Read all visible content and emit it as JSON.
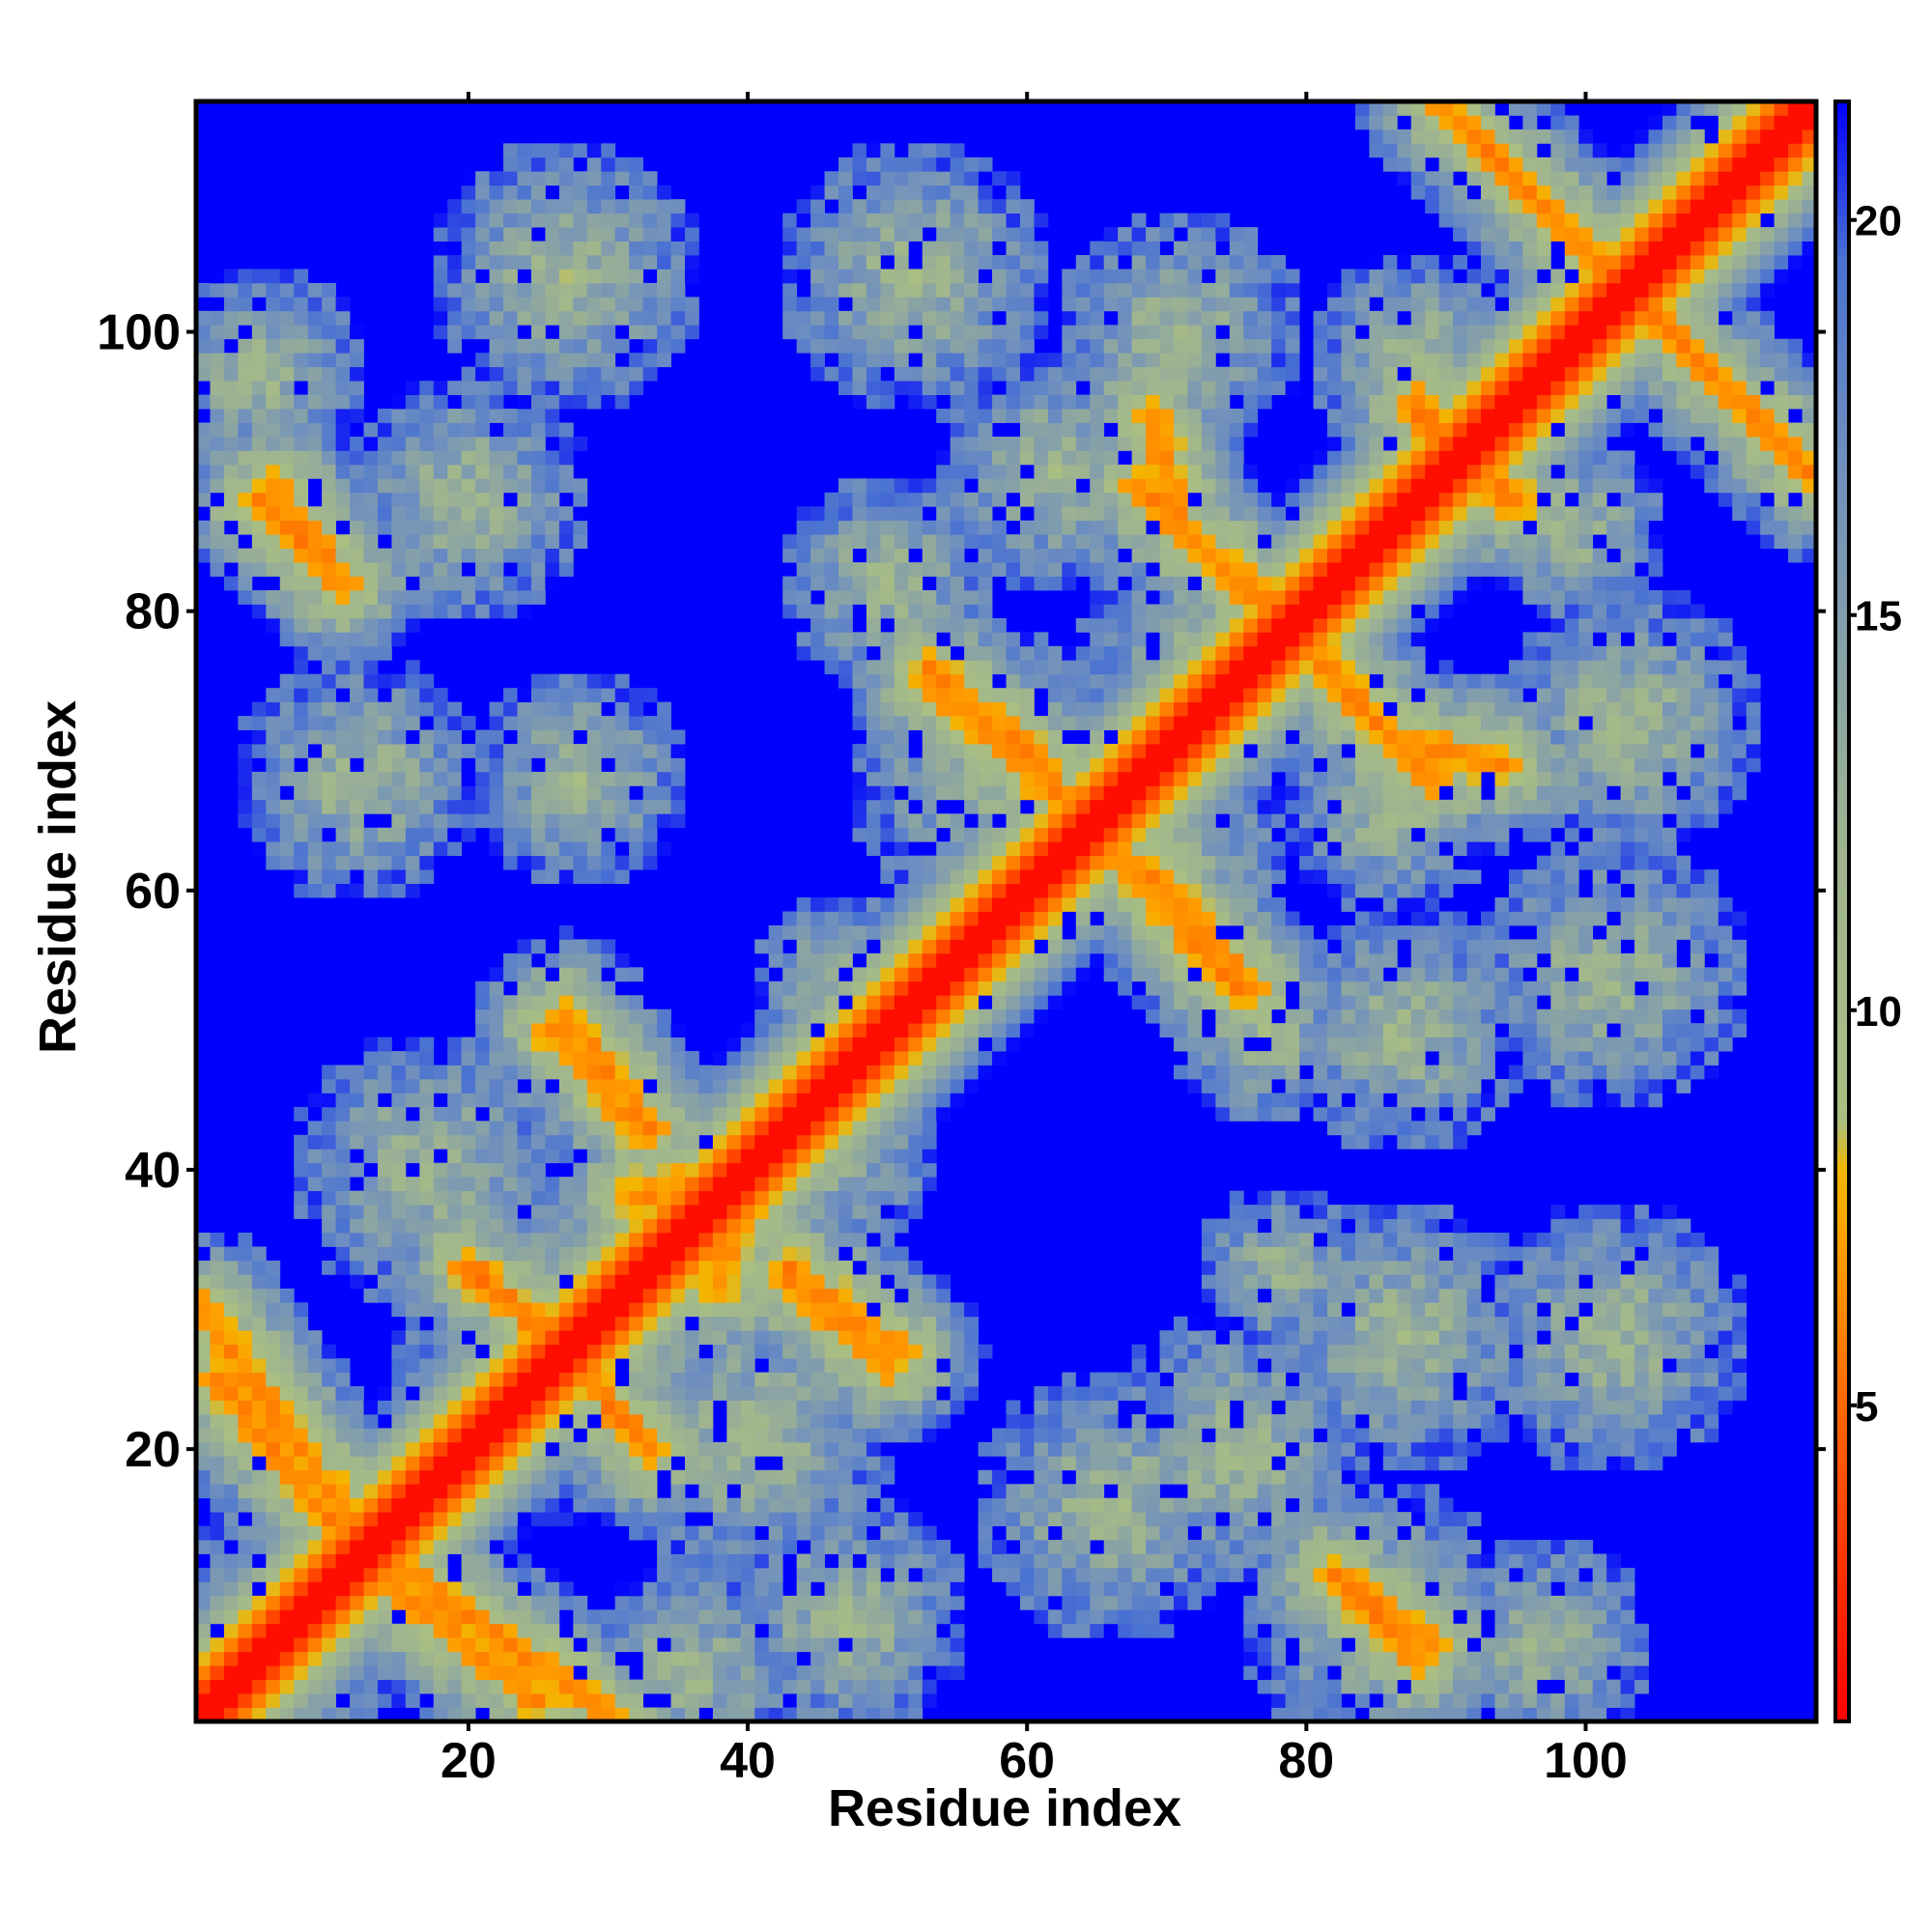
{
  "chart_data": {
    "type": "heatmap",
    "title": "",
    "xlabel": "Residue index",
    "ylabel": "Residue index",
    "n_residues": 116,
    "xlim": [
      1,
      116
    ],
    "ylim": [
      1,
      116
    ],
    "x_ticks": [
      20,
      40,
      60,
      80,
      100
    ],
    "y_ticks": [
      20,
      40,
      60,
      80,
      100
    ],
    "colorbar": {
      "range": [
        1,
        21.5
      ],
      "ticks": [
        5,
        10,
        15,
        20
      ],
      "stops": [
        {
          "value": 1.0,
          "color": "#ff0000"
        },
        {
          "value": 4.5,
          "color": "#ff5a00"
        },
        {
          "value": 7.0,
          "color": "#ff9d00"
        },
        {
          "value": 8.0,
          "color": "#f2b700"
        },
        {
          "value": 8.6,
          "color": "#a9bf82"
        },
        {
          "value": 12.0,
          "color": "#9fb48f"
        },
        {
          "value": 17.0,
          "color": "#6f8fbf"
        },
        {
          "value": 19.5,
          "color": "#4a72d2"
        },
        {
          "value": 21.5,
          "color": "#0000ff"
        }
      ]
    },
    "background_value": 21.5,
    "diagonal": {
      "core_halfwidth": 1,
      "falloff_per_residue": 2.2
    },
    "contact_segments": [
      {
        "from": [
          2,
          25
        ],
        "to": [
          10,
          15
        ],
        "distance": 6.0,
        "width": 1.0
      },
      {
        "from": [
          10,
          15
        ],
        "to": [
          30,
          1
        ],
        "distance": 6.0,
        "width": 1.0
      },
      {
        "from": [
          20,
          33
        ],
        "to": [
          27,
          27
        ],
        "distance": 5.5,
        "width": 1.0
      },
      {
        "from": [
          27,
          27
        ],
        "to": [
          33,
          20
        ],
        "distance": 5.5,
        "width": 1.0
      },
      {
        "from": [
          27,
          51
        ],
        "to": [
          33,
          43
        ],
        "distance": 6.0,
        "width": 1.0
      },
      {
        "from": [
          43,
          32
        ],
        "to": [
          50,
          26
        ],
        "distance": 6.0,
        "width": 1.0
      },
      {
        "from": [
          32,
          38
        ],
        "to": [
          40,
          40
        ],
        "distance": 6.0,
        "width": 1.5
      },
      {
        "from": [
          6,
          89
        ],
        "to": [
          11,
          82
        ],
        "distance": 6.0,
        "width": 1.0
      },
      {
        "from": [
          53,
          76
        ],
        "to": [
          60,
          70
        ],
        "distance": 6.0,
        "width": 1.0
      },
      {
        "from": [
          60,
          70
        ],
        "to": [
          65,
          64
        ],
        "distance": 6.0,
        "width": 1.0
      },
      {
        "from": [
          65,
          64
        ],
        "to": [
          75,
          53
        ],
        "distance": 6.0,
        "width": 1.0
      },
      {
        "from": [
          68,
          89
        ],
        "to": [
          73,
          84
        ],
        "distance": 6.0,
        "width": 1.0
      },
      {
        "from": [
          73,
          84
        ],
        "to": [
          80,
          78
        ],
        "distance": 6.0,
        "width": 1.0
      },
      {
        "from": [
          80,
          78
        ],
        "to": [
          86,
          71
        ],
        "distance": 6.0,
        "width": 1.0
      },
      {
        "from": [
          86,
          71
        ],
        "to": [
          94,
          69
        ],
        "distance": 6.0,
        "width": 1.0
      },
      {
        "from": [
          82,
          11
        ],
        "to": [
          88,
          5
        ],
        "distance": 6.0,
        "width": 1.0
      },
      {
        "from": [
          88,
          94
        ],
        "to": [
          95,
          88
        ],
        "distance": 6.0,
        "width": 1.0
      },
      {
        "from": [
          89,
          117
        ],
        "to": [
          117,
          89
        ],
        "distance": 6.0,
        "width": 0.8
      }
    ],
    "contact_blobs": [
      {
        "center": [
          7,
          7
        ],
        "radius": 10
      },
      {
        "center": [
          24,
          24
        ],
        "radius": 10
      },
      {
        "center": [
          36,
          4
        ],
        "radius": 8
      },
      {
        "center": [
          47,
          8
        ],
        "radius": 9
      },
      {
        "center": [
          40,
          21
        ],
        "radius": 11
      },
      {
        "center": [
          30,
          30
        ],
        "radius": 12
      },
      {
        "center": [
          17,
          40
        ],
        "radius": 10
      },
      {
        "center": [
          12,
          68
        ],
        "radius": 9
      },
      {
        "center": [
          28,
          68
        ],
        "radius": 8
      },
      {
        "center": [
          5,
          97
        ],
        "radius": 8
      },
      {
        "center": [
          20,
          88
        ],
        "radius": 9
      },
      {
        "center": [
          27,
          104
        ],
        "radius": 10
      },
      {
        "center": [
          45,
          42
        ],
        "radius": 9
      },
      {
        "center": [
          47,
          53
        ],
        "radius": 7
      },
      {
        "center": [
          50,
          82
        ],
        "radius": 8
      },
      {
        "center": [
          52,
          104
        ],
        "radius": 10
      },
      {
        "center": [
          62,
          90
        ],
        "radius": 9
      },
      {
        "center": [
          58,
          68
        ],
        "radius": 11
      },
      {
        "center": [
          66,
          16
        ],
        "radius": 10
      },
      {
        "center": [
          75,
          20
        ],
        "radius": 10
      },
      {
        "center": [
          70,
          62
        ],
        "radius": 9
      },
      {
        "center": [
          74,
          76
        ],
        "radius": 11
      },
      {
        "center": [
          71,
          100
        ],
        "radius": 9
      },
      {
        "center": [
          77,
          50
        ],
        "radius": 7
      },
      {
        "center": [
          78,
          33
        ],
        "radius": 6
      },
      {
        "center": [
          85,
          8
        ],
        "radius": 10
      },
      {
        "center": [
          87,
          28
        ],
        "radius": 10
      },
      {
        "center": [
          87,
          50
        ],
        "radius": 9
      },
      {
        "center": [
          86,
          66
        ],
        "radius": 8
      },
      {
        "center": [
          88,
          98
        ],
        "radius": 8
      },
      {
        "center": [
          97,
          6
        ],
        "radius": 8
      },
      {
        "center": [
          102,
          28
        ],
        "radius": 10
      },
      {
        "center": [
          102,
          54
        ],
        "radius": 10
      },
      {
        "center": [
          103,
          72
        ],
        "radius": 10
      },
      {
        "center": [
          99,
          86
        ],
        "radius": 7
      }
    ]
  }
}
